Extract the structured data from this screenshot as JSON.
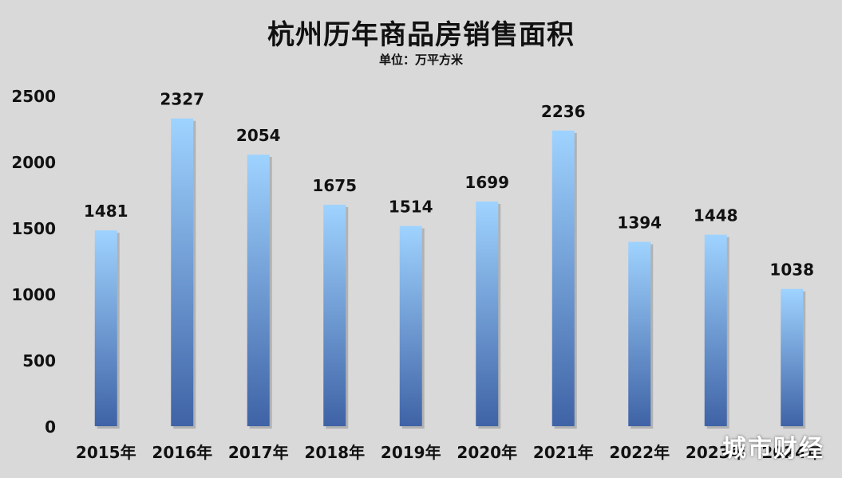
{
  "title": "杭州历年商品房销售面积",
  "subtitle": "单位：万平方米",
  "watermark": "城市财经",
  "chart_data": {
    "type": "bar",
    "categories": [
      "2015年",
      "2016年",
      "2017年",
      "2018年",
      "2019年",
      "2020年",
      "2021年",
      "2022年",
      "2023年",
      "2024年"
    ],
    "values": [
      1481,
      2327,
      2054,
      1675,
      1514,
      1699,
      2236,
      1394,
      1448,
      1038
    ],
    "ylim": [
      0,
      2500
    ],
    "yticks": [
      0,
      500,
      1000,
      1500,
      2000,
      2500
    ],
    "grid": false,
    "legend": "none",
    "colors": {
      "bar_top": "#9fd3ff",
      "bar_bottom": "#3f63a6"
    }
  }
}
